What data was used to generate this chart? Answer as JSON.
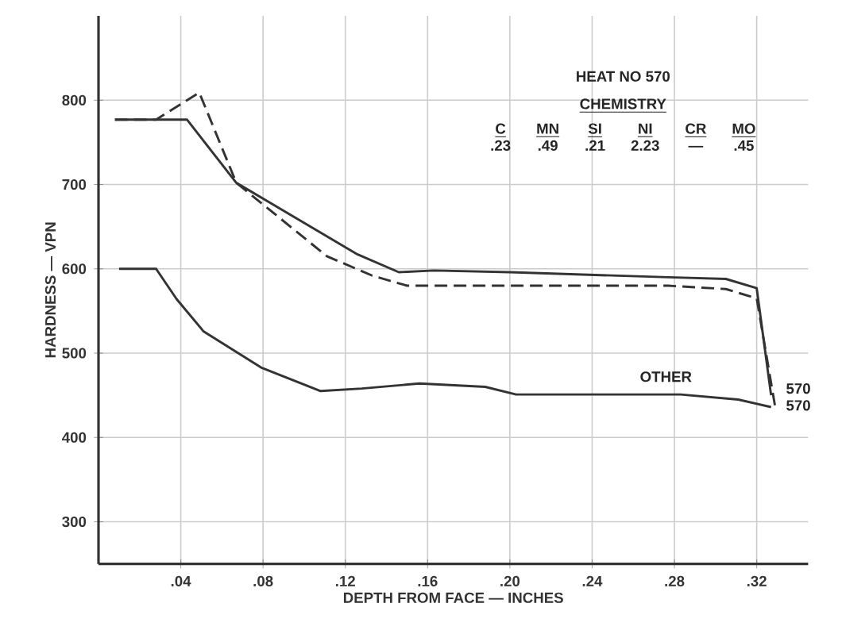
{
  "chart_data": {
    "type": "line",
    "xlabel": "DEPTH FROM FACE — INCHES",
    "ylabel": "HARDNESS — VPN",
    "xlim": [
      0,
      0.345
    ],
    "ylim": [
      250,
      900
    ],
    "xticks": [
      {
        "value": 0.04,
        "label": ".04"
      },
      {
        "value": 0.08,
        "label": ".08"
      },
      {
        "value": 0.12,
        "label": ".12"
      },
      {
        "value": 0.16,
        "label": ".16"
      },
      {
        "value": 0.2,
        "label": ".20"
      },
      {
        "value": 0.24,
        "label": ".24"
      },
      {
        "value": 0.28,
        "label": ".28"
      },
      {
        "value": 0.32,
        "label": ".32"
      }
    ],
    "yticks": [
      300,
      400,
      500,
      600,
      700,
      800
    ],
    "grid": true,
    "marker": "none",
    "series": [
      {
        "color": "#333333",
        "line_style": "solid",
        "x": [
          0.008,
          0.043,
          0.067,
          0.126,
          0.146,
          0.163,
          0.2,
          0.277,
          0.305,
          0.32,
          0.327
        ],
        "values": [
          777,
          777,
          702,
          617,
          596,
          598,
          596,
          590,
          588,
          577,
          450
        ]
      },
      {
        "color": "#333333",
        "line_style": "dashed",
        "x": [
          0.008,
          0.028,
          0.049,
          0.067,
          0.111,
          0.133,
          0.15,
          0.277,
          0.305,
          0.32,
          0.329
        ],
        "values": [
          777,
          777,
          809,
          702,
          615,
          592,
          580,
          580,
          576,
          565,
          436
        ]
      },
      {
        "color": "#333333",
        "line_style": "solid",
        "x": [
          0.01,
          0.028,
          0.038,
          0.051,
          0.079,
          0.108,
          0.128,
          0.156,
          0.188,
          0.203,
          0.283,
          0.311,
          0.327
        ],
        "values": [
          600,
          600,
          564,
          526,
          483,
          455,
          458,
          464,
          460,
          451,
          451,
          445,
          436
        ]
      }
    ],
    "annotations": [
      "OTHER",
      "570",
      "570",
      "HEAT NO 570",
      "CHEMISTRY",
      "C",
      "MN",
      "SI",
      "NI",
      "CR",
      "MO",
      ".23",
      ".49",
      ".21",
      "2.23",
      "—",
      ".45"
    ]
  }
}
